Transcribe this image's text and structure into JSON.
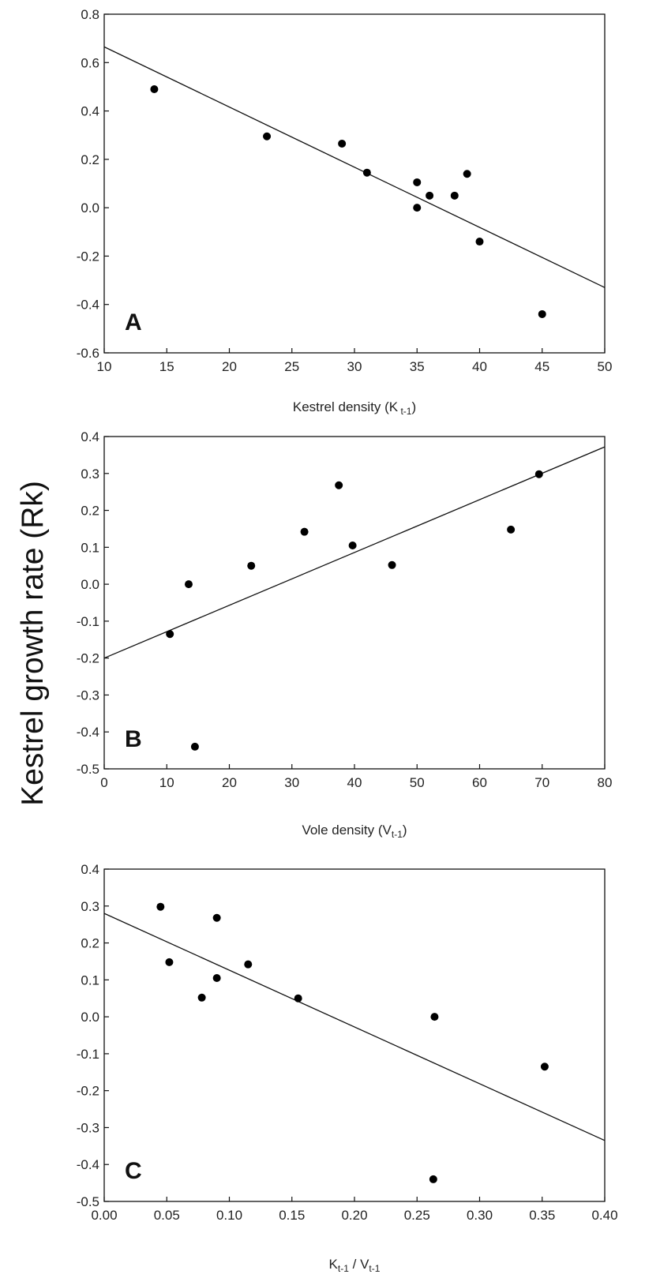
{
  "figure": {
    "ylabel": "Kestrel growth rate (Rk)"
  },
  "chart_data": [
    {
      "type": "scatter",
      "panel_label": "A",
      "xlabel": {
        "main": "Kestrel density (K",
        "sub": " t-1",
        "close": ")"
      },
      "xlim": [
        10,
        50
      ],
      "ylim": [
        -0.6,
        0.8
      ],
      "xticks": [
        "10",
        "15",
        "20",
        "25",
        "30",
        "35",
        "40",
        "45",
        "50"
      ],
      "yticks": [
        "-0.6",
        "-0.4",
        "-0.2",
        "0.0",
        "0.2",
        "0.4",
        "0.6",
        "0.8"
      ],
      "points": {
        "x": [
          14,
          23,
          29,
          31,
          35,
          35,
          36,
          38,
          39,
          40,
          45
        ],
        "y": [
          0.49,
          0.295,
          0.265,
          0.145,
          0.105,
          0.0,
          0.05,
          0.05,
          0.14,
          -0.14,
          -0.44
        ]
      },
      "fit_line": {
        "x": [
          10,
          50
        ],
        "y": [
          0.665,
          -0.33
        ]
      }
    },
    {
      "type": "scatter",
      "panel_label": "B",
      "xlabel": {
        "main": "Vole density (V",
        "sub": "t-1",
        "close": ")"
      },
      "xlim": [
        0,
        80
      ],
      "ylim": [
        -0.5,
        0.4
      ],
      "xticks": [
        "0",
        "10",
        "20",
        "30",
        "40",
        "50",
        "60",
        "70",
        "80"
      ],
      "yticks": [
        "-0.5",
        "-0.4",
        "-0.3",
        "-0.2",
        "-0.1",
        "0.0",
        "0.1",
        "0.2",
        "0.3",
        "0.4"
      ],
      "points": {
        "x": [
          10.5,
          13.5,
          14.5,
          23.5,
          32,
          37.5,
          39.7,
          46,
          65,
          69.5
        ],
        "y": [
          -0.135,
          0.0,
          -0.44,
          0.05,
          0.142,
          0.268,
          0.105,
          0.052,
          0.148,
          0.298
        ]
      },
      "fit_line": {
        "x": [
          0,
          80
        ],
        "y": [
          -0.2,
          0.372
        ]
      }
    },
    {
      "type": "scatter",
      "panel_label": "C",
      "xlabel": {
        "main": "K",
        "sub": "t-1",
        "mid": " / V",
        "sub2": "t-1"
      },
      "xlim": [
        0.0,
        0.4
      ],
      "ylim": [
        -0.5,
        0.4
      ],
      "xticks": [
        "0.00",
        "0.05",
        "0.10",
        "0.15",
        "0.20",
        "0.25",
        "0.30",
        "0.35",
        "0.40"
      ],
      "yticks": [
        "-0.5",
        "-0.4",
        "-0.3",
        "-0.2",
        "-0.1",
        "0.0",
        "0.1",
        "0.2",
        "0.3",
        "0.4"
      ],
      "points": {
        "x": [
          0.045,
          0.052,
          0.078,
          0.09,
          0.09,
          0.115,
          0.155,
          0.264,
          0.263,
          0.352
        ],
        "y": [
          0.298,
          0.148,
          0.052,
          0.268,
          0.105,
          0.142,
          0.05,
          0.0,
          -0.44,
          -0.135
        ]
      },
      "fit_line": {
        "x": [
          0.0,
          0.4
        ],
        "y": [
          0.28,
          -0.335
        ]
      }
    }
  ]
}
